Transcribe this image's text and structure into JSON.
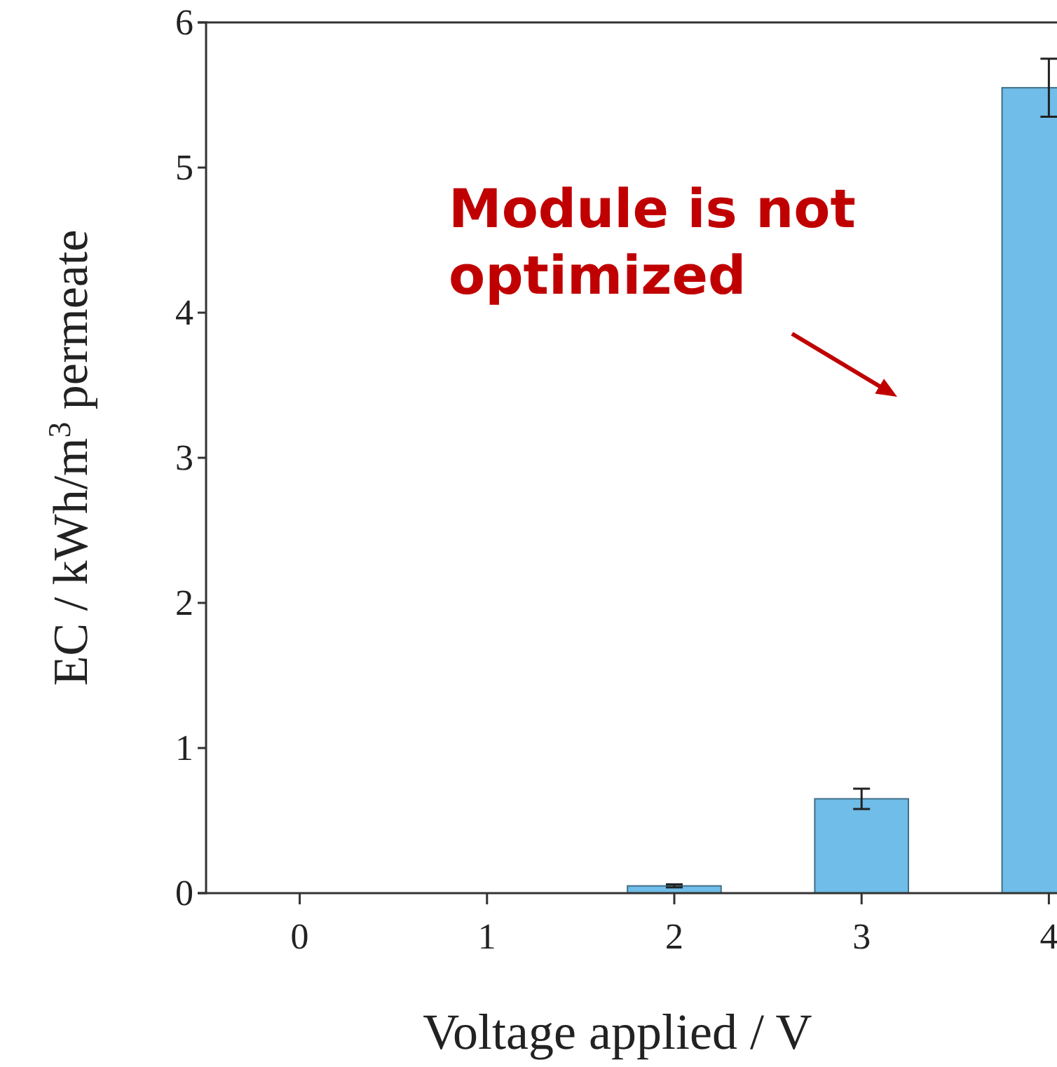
{
  "chart_data": {
    "type": "bar",
    "xlabel": "Voltage applied / V",
    "ylabel": "EC / kWh/m$^{3}$ permeate",
    "categories": [
      "0",
      "1",
      "2",
      "3",
      "4"
    ],
    "values": [
      0,
      0,
      0.05,
      0.65,
      5.55
    ],
    "errors": [
      null,
      null,
      0.01,
      0.07,
      0.2
    ],
    "color": "#6fbde8",
    "ylim": [
      0,
      6
    ],
    "yticks": [
      0,
      1,
      2,
      3,
      4,
      5,
      6
    ],
    "grid": false,
    "annotations": [
      "Module is not optimized"
    ]
  }
}
